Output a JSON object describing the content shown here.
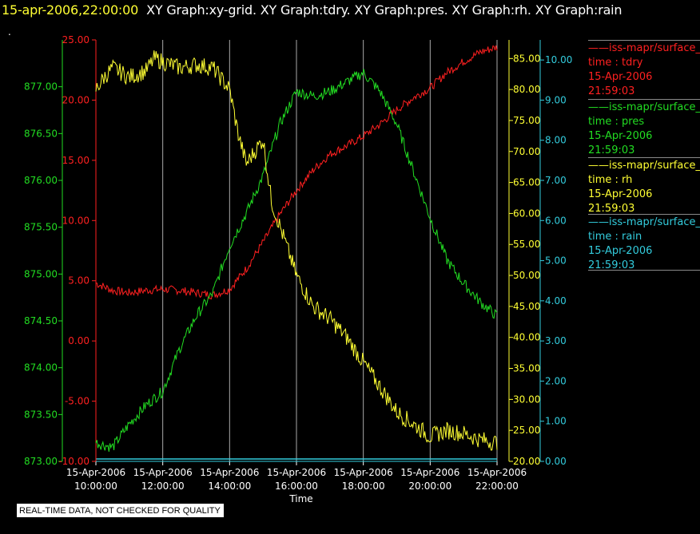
{
  "header": {
    "time": "15-apr-2006,22:00:00",
    "graphs": "XY Graph:xy-grid.  XY Graph:tdry.  XY Graph:pres.  XY Graph:rh.  XY Graph:rain",
    "dot": "."
  },
  "disclaimer": "REAL-TIME DATA, NOT CHECKED FOR QUALITY",
  "colors": {
    "tdry": "#ff2020",
    "pres": "#22dd22",
    "rh": "#ffff33",
    "rain": "#33ccdd",
    "grid": "#aaaaaa",
    "axis_text": "#ffffff"
  },
  "legend": [
    {
      "series": "iss-mapr/surface_",
      "var": "time : tdry",
      "date": "15-Apr-2006",
      "time": "21:59:03",
      "color": "#ff2020"
    },
    {
      "series": "iss-mapr/surface_",
      "var": "time : pres",
      "date": "15-Apr-2006",
      "time": "21:59:03",
      "color": "#22dd22"
    },
    {
      "series": "iss-mapr/surface_",
      "var": "time : rh",
      "date": "15-Apr-2006",
      "time": "21:59:03",
      "color": "#ffff33"
    },
    {
      "series": "iss-mapr/surface_",
      "var": "time : rain",
      "date": "15-Apr-2006",
      "time": "21:59:03",
      "color": "#33ccdd"
    }
  ],
  "chart_data": {
    "type": "line",
    "title": "XY Graph",
    "xlabel": "Time",
    "x_range": [
      "15-Apr-2006 10:00:00",
      "15-Apr-2006 22:00:00"
    ],
    "x_ticks": [
      {
        "date": "15-Apr-2006",
        "time": "10:00:00",
        "hour": 10
      },
      {
        "date": "15-Apr-2006",
        "time": "12:00:00",
        "hour": 12
      },
      {
        "date": "15-Apr-2006",
        "time": "14:00:00",
        "hour": 14
      },
      {
        "date": "15-Apr-2006",
        "time": "16:00:00",
        "hour": 16
      },
      {
        "date": "15-Apr-2006",
        "time": "18:00:00",
        "hour": 18
      },
      {
        "date": "15-Apr-2006",
        "time": "20:00:00",
        "hour": 20
      },
      {
        "date": "15-Apr-2006",
        "time": "22:00:00",
        "hour": 22
      }
    ],
    "grid": true,
    "legend_position": "right",
    "axes": {
      "pres": {
        "side": "left-outer",
        "range": [
          873.0,
          877.5
        ],
        "ticks": [
          "873.00",
          "873.50",
          "874.00",
          "874.50",
          "875.00",
          "875.50",
          "876.00",
          "876.50",
          "877.00"
        ],
        "tick_values": [
          873.0,
          873.5,
          874.0,
          874.5,
          875.0,
          875.5,
          876.0,
          876.5,
          877.0
        ]
      },
      "tdry": {
        "side": "left-inner",
        "range": [
          -10.0,
          25.0
        ],
        "ticks": [
          "-10.00",
          "-5.00",
          "0.00",
          "5.00",
          "10.00",
          "15.00",
          "20.00",
          "25.00"
        ],
        "tick_values": [
          -10,
          -5,
          0,
          5,
          10,
          15,
          20,
          25
        ]
      },
      "rh": {
        "side": "right-inner",
        "range": [
          20.0,
          88.0
        ],
        "ticks": [
          "20.00",
          "25.00",
          "30.00",
          "35.00",
          "40.00",
          "45.00",
          "50.00",
          "55.00",
          "60.00",
          "65.00",
          "70.00",
          "75.00",
          "80.00",
          "85.00"
        ],
        "tick_values": [
          20,
          25,
          30,
          35,
          40,
          45,
          50,
          55,
          60,
          65,
          70,
          75,
          80,
          85
        ]
      },
      "rain": {
        "side": "right-outer",
        "range": [
          0.0,
          10.5
        ],
        "ticks": [
          "0.00",
          "1.00",
          "2.00",
          "3.00",
          "4.00",
          "5.00",
          "6.00",
          "7.00",
          "8.00",
          "9.00",
          "10.00"
        ],
        "tick_values": [
          0,
          1,
          2,
          3,
          4,
          5,
          6,
          7,
          8,
          9,
          10
        ]
      }
    },
    "series": [
      {
        "axis": "tdry",
        "x_hours": [
          10,
          10.5,
          11,
          11.5,
          12,
          12.5,
          13,
          13.5,
          14,
          14.5,
          15,
          15.5,
          16,
          16.5,
          17,
          17.5,
          18,
          18.5,
          19,
          19.5,
          20,
          20.5,
          21,
          21.5,
          22
        ],
        "values": [
          4.8,
          4.2,
          4.0,
          4.2,
          4.3,
          4.2,
          4.0,
          3.8,
          4.3,
          6.0,
          8.2,
          10.5,
          12.5,
          14.2,
          15.5,
          16.2,
          17.0,
          18.0,
          19.2,
          20.2,
          21.0,
          22.3,
          23.2,
          24.0,
          24.4
        ]
      },
      {
        "axis": "pres",
        "x_hours": [
          10,
          10.5,
          11,
          11.5,
          12,
          12.5,
          13,
          13.5,
          14,
          14.5,
          15,
          15.5,
          16,
          16.5,
          17,
          17.5,
          18,
          18.5,
          19,
          19.5,
          20,
          20.5,
          21,
          21.5,
          22
        ],
        "values": [
          873.2,
          873.15,
          873.4,
          873.6,
          873.75,
          874.2,
          874.55,
          874.8,
          875.3,
          875.65,
          876.05,
          876.6,
          876.95,
          876.9,
          876.95,
          877.05,
          877.15,
          876.95,
          876.6,
          876.1,
          875.6,
          875.15,
          874.9,
          874.7,
          874.55
        ]
      },
      {
        "axis": "rh",
        "x_hours": [
          10,
          10.25,
          10.5,
          11,
          11.5,
          11.75,
          12,
          12.5,
          13,
          13.5,
          14,
          14.25,
          14.5,
          14.75,
          15,
          15.25,
          15.5,
          16,
          16.5,
          17,
          17.5,
          18,
          18.5,
          19,
          19.5,
          20,
          20.5,
          21,
          21.5,
          22
        ],
        "values": [
          80,
          82,
          83.5,
          82,
          83,
          85,
          84.5,
          83.5,
          84,
          83.5,
          80,
          73,
          68,
          70,
          72,
          62,
          58,
          50,
          45,
          43,
          40,
          36,
          32,
          28,
          26,
          24,
          25,
          24.5,
          23.5,
          23
        ]
      },
      {
        "axis": "rain",
        "x_hours": [
          10,
          22
        ],
        "values": [
          0,
          0
        ]
      }
    ]
  }
}
